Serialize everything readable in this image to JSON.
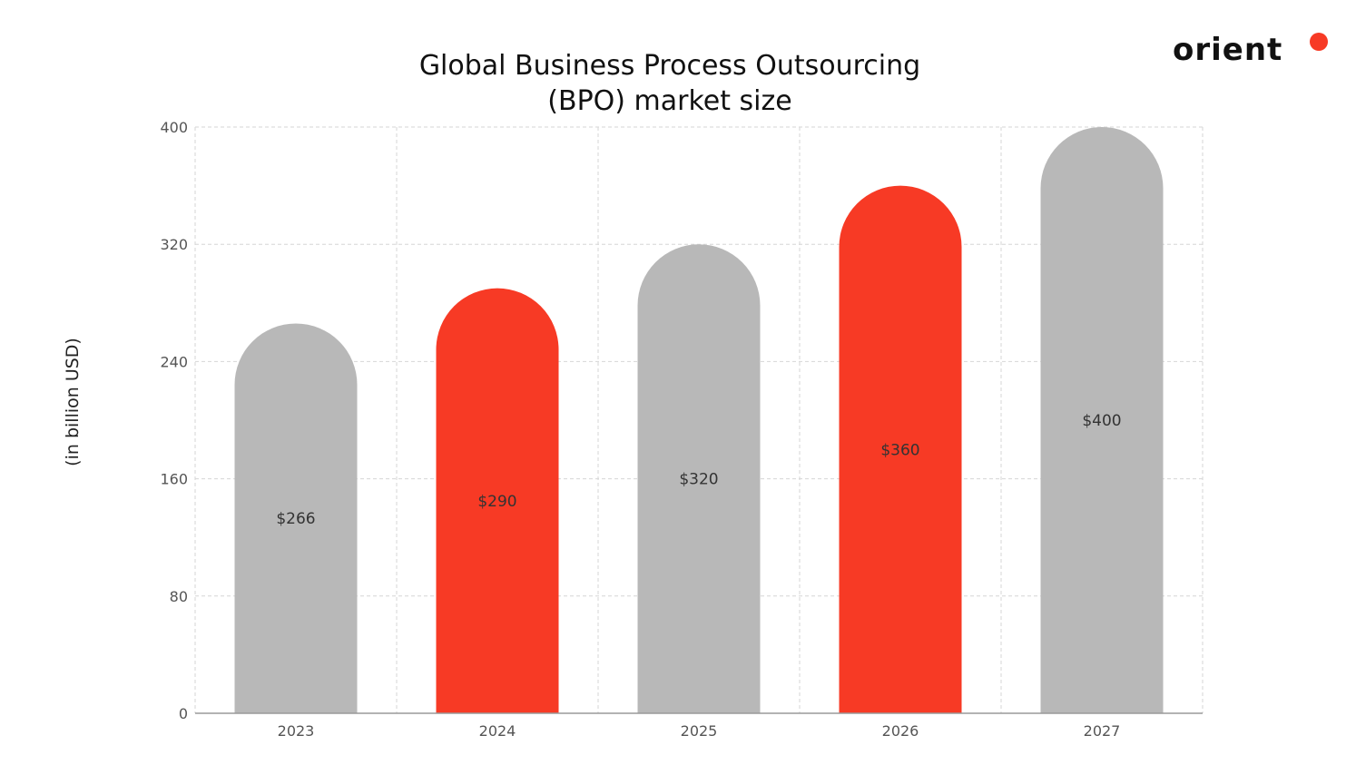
{
  "logo": {
    "text": "orient",
    "dot_color": "#F73A25"
  },
  "colors": {
    "gray": "#B8B8B8",
    "red": "#F73A25",
    "grid": "#D6D6D6"
  },
  "chart_data": {
    "type": "bar",
    "title": "Global Business Process Outsourcing (BPO) market size",
    "title_lines": [
      "Global Business Process Outsourcing",
      "(BPO) market size"
    ],
    "ylabel": "(in billion USD)",
    "xlabel": "",
    "categories": [
      "2023",
      "2024",
      "2025",
      "2026",
      "2027"
    ],
    "values": [
      266,
      290,
      320,
      360,
      400
    ],
    "value_labels": [
      "$266",
      "$290",
      "$320",
      "$360",
      "$400"
    ],
    "bar_colors": [
      "#B8B8B8",
      "#F73A25",
      "#B8B8B8",
      "#F73A25",
      "#B8B8B8"
    ],
    "ylim": [
      0,
      400
    ],
    "yticks": [
      0,
      80,
      160,
      240,
      320,
      400
    ],
    "grid": true,
    "bar_shape": "rounded-top"
  }
}
